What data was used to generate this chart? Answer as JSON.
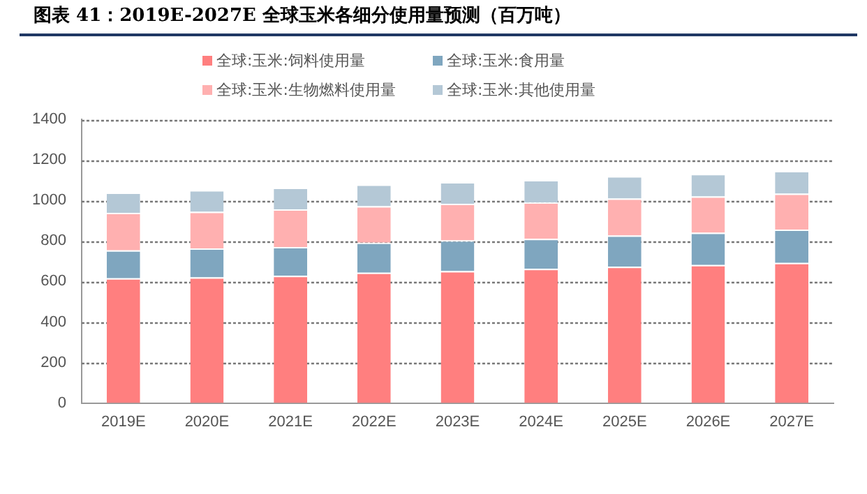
{
  "chart_data": {
    "type": "bar",
    "title": "图表 41：2019E-2027E 全球玉米各细分使用量预测（百万吨）",
    "categories": [
      "2019E",
      "2020E",
      "2021E",
      "2022E",
      "2023E",
      "2024E",
      "2025E",
      "2026E",
      "2027E"
    ],
    "stacked": true,
    "legend": "top",
    "grid": "y",
    "ylim": [
      0,
      1400
    ],
    "yticks": [
      0,
      200,
      400,
      600,
      800,
      1000,
      1200,
      1400
    ],
    "series": [
      {
        "name": "全球:玉米:饲料使用量",
        "color": "#ff7f7f",
        "values": [
          616,
          620,
          628,
          644,
          651,
          663,
          673,
          682,
          692
        ]
      },
      {
        "name": "全球:玉米:食用量",
        "color": "#7fa6bf",
        "values": [
          138,
          143,
          142,
          148,
          152,
          148,
          154,
          159,
          164
        ]
      },
      {
        "name": "全球:玉米:生物燃料使用量",
        "color": "#ffb0b0",
        "values": [
          185,
          181,
          186,
          180,
          181,
          180,
          183,
          179,
          178
        ]
      },
      {
        "name": "全球:玉米:其他使用量",
        "color": "#b4c8d6",
        "values": [
          100,
          107,
          107,
          107,
          107,
          110,
          110,
          111,
          112
        ]
      }
    ]
  }
}
